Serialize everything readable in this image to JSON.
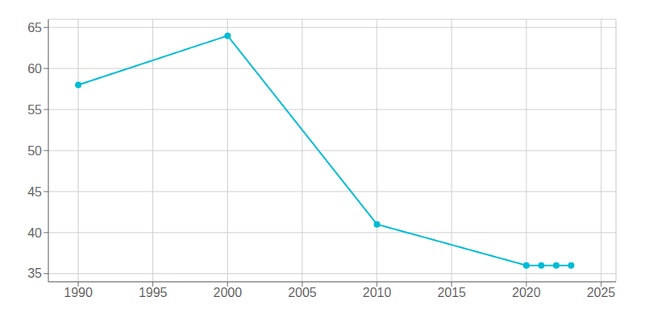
{
  "chart_data": {
    "type": "line",
    "x": [
      1990,
      2000,
      2010,
      2020,
      2021,
      2022,
      2023
    ],
    "values": [
      58,
      64,
      41,
      36,
      36,
      36,
      36
    ],
    "color": "#00BCD4",
    "marker": "o",
    "xlim": [
      1988,
      2026
    ],
    "xticks": [
      1990,
      1995,
      2000,
      2005,
      2010,
      2015,
      2020,
      2025
    ],
    "ylim": [
      34,
      66
    ],
    "yticks": [
      35,
      40,
      45,
      50,
      55,
      60,
      65
    ],
    "grid": true
  }
}
